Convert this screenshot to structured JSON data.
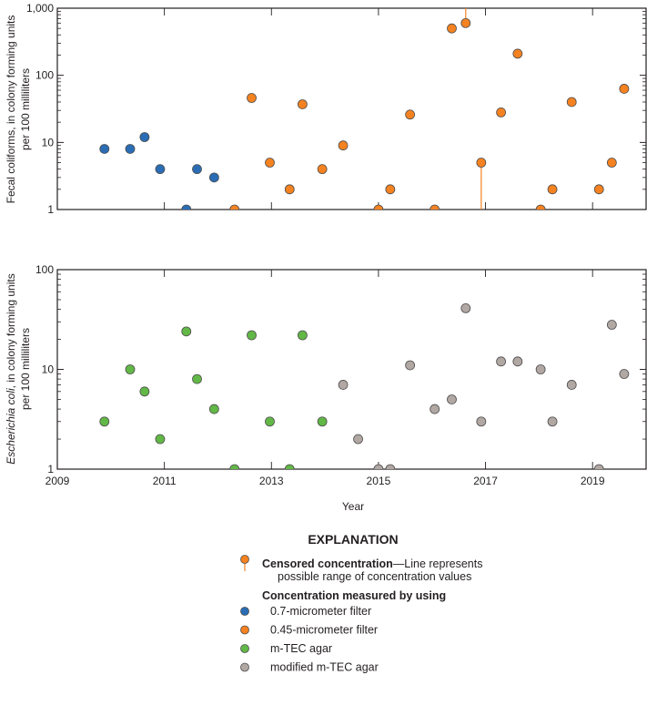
{
  "colors": {
    "filter_07": "#2a6db5",
    "filter_045": "#f58220",
    "mtec": "#62b846",
    "modified_mtec": "#b1a7a3",
    "censored_line": "#f58220",
    "axis": "#231f20",
    "marker_edge": "#4d4d4d"
  },
  "chart_data": [
    {
      "type": "scatter",
      "id": "fecal",
      "ylabel_lines": [
        "Fecal coliforms, in colony forming units",
        "per 100 milliliters"
      ],
      "xlabel": "",
      "yscale": "log",
      "ylim": [
        1,
        1000
      ],
      "xlim": [
        2009,
        2020
      ],
      "y_ticks": [
        1,
        10,
        100,
        1000
      ],
      "y_tick_labels": [
        "1",
        "10",
        "100",
        "1,000"
      ],
      "x_ticks": [
        2009,
        2011,
        2013,
        2015,
        2017,
        2019
      ],
      "x_tick_labels": [],
      "series": [
        {
          "name": "0.7-micrometer filter",
          "color_key": "filter_07",
          "points": [
            {
              "x": 2009.88,
              "y": 8
            },
            {
              "x": 2010.36,
              "y": 8
            },
            {
              "x": 2010.63,
              "y": 12
            },
            {
              "x": 2010.92,
              "y": 4
            },
            {
              "x": 2011.41,
              "y": 1
            },
            {
              "x": 2011.61,
              "y": 4
            },
            {
              "x": 2011.93,
              "y": 3
            }
          ]
        },
        {
          "name": "0.45-micrometer filter",
          "color_key": "filter_045",
          "points": [
            {
              "x": 2012.31,
              "y": 1
            },
            {
              "x": 2012.63,
              "y": 46
            },
            {
              "x": 2012.97,
              "y": 5
            },
            {
              "x": 2013.34,
              "y": 2
            },
            {
              "x": 2013.58,
              "y": 37
            },
            {
              "x": 2013.95,
              "y": 4
            },
            {
              "x": 2014.34,
              "y": 9
            },
            {
              "x": 2015.0,
              "y": 1
            },
            {
              "x": 2015.22,
              "y": 2
            },
            {
              "x": 2015.59,
              "y": 26
            },
            {
              "x": 2016.05,
              "y": 1
            },
            {
              "x": 2016.37,
              "y": 500
            },
            {
              "x": 2016.63,
              "y": 600,
              "censored": "greater"
            },
            {
              "x": 2016.92,
              "y": 5,
              "censored": "less"
            },
            {
              "x": 2017.29,
              "y": 28
            },
            {
              "x": 2017.6,
              "y": 210
            },
            {
              "x": 2018.03,
              "y": 1
            },
            {
              "x": 2018.25,
              "y": 2
            },
            {
              "x": 2018.61,
              "y": 40
            },
            {
              "x": 2019.12,
              "y": 2
            },
            {
              "x": 2019.36,
              "y": 5
            },
            {
              "x": 2019.59,
              "y": 63
            }
          ]
        }
      ]
    },
    {
      "type": "scatter",
      "id": "ecoli",
      "ylabel_italic": "Escherichia coli",
      "ylabel_rest": ", in colony forming units",
      "ylabel_line2": "per 100 milliliters",
      "xlabel": "Year",
      "yscale": "log",
      "ylim": [
        1,
        100
      ],
      "xlim": [
        2009,
        2020
      ],
      "y_ticks": [
        1,
        10,
        100
      ],
      "y_tick_labels": [
        "1",
        "10",
        "100"
      ],
      "x_ticks": [
        2009,
        2011,
        2013,
        2015,
        2017,
        2019
      ],
      "x_tick_labels": [
        "2009",
        "2011",
        "2013",
        "2015",
        "2017",
        "2019"
      ],
      "series": [
        {
          "name": "m-TEC agar",
          "color_key": "mtec",
          "points": [
            {
              "x": 2009.88,
              "y": 3
            },
            {
              "x": 2010.36,
              "y": 10
            },
            {
              "x": 2010.63,
              "y": 6
            },
            {
              "x": 2010.92,
              "y": 2
            },
            {
              "x": 2011.41,
              "y": 24
            },
            {
              "x": 2011.61,
              "y": 8
            },
            {
              "x": 2011.93,
              "y": 4
            },
            {
              "x": 2012.31,
              "y": 1
            },
            {
              "x": 2012.63,
              "y": 22
            },
            {
              "x": 2012.97,
              "y": 3
            },
            {
              "x": 2013.34,
              "y": 1
            },
            {
              "x": 2013.58,
              "y": 22
            },
            {
              "x": 2013.95,
              "y": 3
            }
          ]
        },
        {
          "name": "modified m-TEC agar",
          "color_key": "modified_mtec",
          "points": [
            {
              "x": 2014.34,
              "y": 7
            },
            {
              "x": 2014.62,
              "y": 2
            },
            {
              "x": 2015.0,
              "y": 1
            },
            {
              "x": 2015.22,
              "y": 1
            },
            {
              "x": 2015.59,
              "y": 11
            },
            {
              "x": 2016.05,
              "y": 4
            },
            {
              "x": 2016.37,
              "y": 5
            },
            {
              "x": 2016.63,
              "y": 41
            },
            {
              "x": 2016.92,
              "y": 3
            },
            {
              "x": 2017.29,
              "y": 12
            },
            {
              "x": 2017.6,
              "y": 12
            },
            {
              "x": 2018.03,
              "y": 10
            },
            {
              "x": 2018.25,
              "y": 3
            },
            {
              "x": 2018.61,
              "y": 7
            },
            {
              "x": 2019.12,
              "y": 1
            },
            {
              "x": 2019.36,
              "y": 28
            },
            {
              "x": 2019.59,
              "y": 9
            }
          ]
        }
      ]
    }
  ],
  "legend": {
    "title": "EXPLANATION",
    "censored_bold": "Censored concentration",
    "censored_rest": "—Line represents",
    "censored_line2": "possible range of concentration values",
    "group_heading": "Concentration measured by using",
    "items": [
      {
        "label": "0.7-micrometer filter",
        "color_key": "filter_07"
      },
      {
        "label": "0.45-micrometer filter",
        "color_key": "filter_045"
      },
      {
        "label": "m-TEC agar",
        "color_key": "mtec"
      },
      {
        "label": "modified m-TEC agar",
        "color_key": "modified_mtec"
      }
    ]
  }
}
